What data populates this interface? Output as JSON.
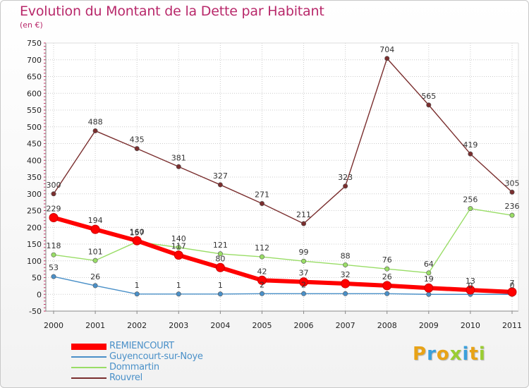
{
  "header": {
    "title": "Evolution du Montant de la Dette par Habitant",
    "subtitle": "(en €)"
  },
  "logo": {
    "text": "Proxiti",
    "colors": [
      "#e8a317",
      "#3aa0dc",
      "#e8a317",
      "#9acd32",
      "#3aa0dc",
      "#e8a317",
      "#9acd32"
    ]
  },
  "chart_data": {
    "type": "line",
    "title": "Evolution du Montant de la Dette par Habitant",
    "subtitle": "(en €)",
    "x": [
      "2000",
      "2001",
      "2002",
      "2003",
      "2004",
      "2005",
      "2006",
      "2007",
      "2008",
      "2009",
      "2010",
      "2011"
    ],
    "ylim": [
      -50,
      750
    ],
    "yticks": [
      -50,
      0,
      50,
      100,
      150,
      200,
      250,
      300,
      350,
      400,
      450,
      500,
      550,
      600,
      650,
      700,
      750
    ],
    "grid": true,
    "legend_position": "bottom-left",
    "series": [
      {
        "name": "REMIENCOURT",
        "color": "#ff0000",
        "values": [
          229,
          194,
          160,
          117,
          80,
          42,
          37,
          32,
          26,
          19,
          13,
          7
        ],
        "labels": [
          "229",
          "194",
          "160",
          "117",
          "80",
          "42",
          "37",
          "32",
          "26",
          "19",
          "13",
          "7"
        ]
      },
      {
        "name": "Guyencourt-sur-Noye",
        "color": "#4a90c8",
        "values": [
          53,
          26,
          1,
          1,
          1,
          2,
          2,
          2,
          2,
          0,
          0,
          0
        ],
        "labels": [
          "53",
          "26",
          "1",
          "1",
          "1",
          "2",
          "2",
          "",
          "",
          "",
          "0",
          "0"
        ]
      },
      {
        "name": "Dommartin",
        "color": "#99dd66",
        "values": [
          118,
          101,
          157,
          140,
          121,
          112,
          99,
          88,
          76,
          64,
          256,
          236
        ],
        "labels": [
          "118",
          "101",
          "157",
          "140",
          "121",
          "112",
          "99",
          "88",
          "76",
          "64",
          "256",
          "236"
        ]
      },
      {
        "name": "Rouvrel",
        "color": "#7a2e2e",
        "values": [
          300,
          488,
          435,
          381,
          327,
          271,
          211,
          323,
          704,
          565,
          419,
          305
        ],
        "labels": [
          "300",
          "488",
          "435",
          "381",
          "327",
          "271",
          "211",
          "323",
          "704",
          "565",
          "419",
          "305"
        ]
      }
    ]
  }
}
